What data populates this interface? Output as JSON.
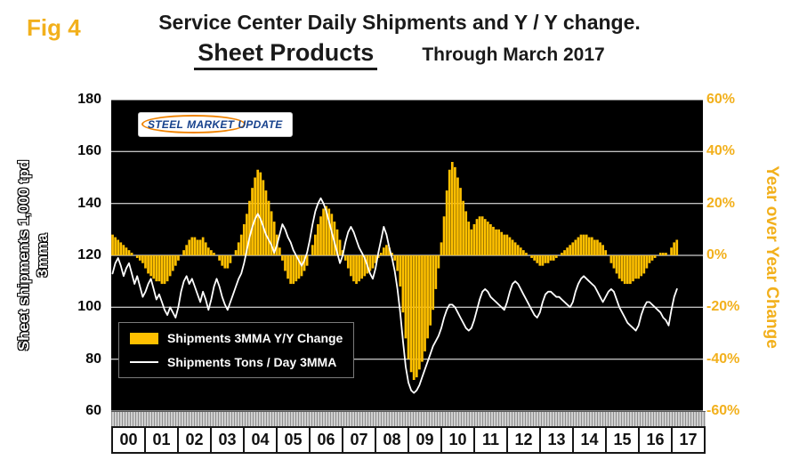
{
  "figure": {
    "fig_label": "Fig 4",
    "title": "Service Center Daily Shipments and Y / Y change.",
    "subtitle": "Sheet Products",
    "subtitle_note": "Through March 2017"
  },
  "logo": {
    "words": [
      "STEEL",
      "MARKET",
      "UPDATE"
    ]
  },
  "legend": {
    "items": [
      {
        "swatch": "bar",
        "color": "#FFC000",
        "label": "Shipments 3MMA Y/Y Change"
      },
      {
        "swatch": "line",
        "color": "#FFFFFF",
        "label": "Shipments Tons / Day 3MMA"
      }
    ]
  },
  "colors": {
    "gold_bars": "#FFC000",
    "gold_text": "#F2B01C",
    "plot_background": "#000000",
    "line_series": "#FFFFFF",
    "gridline": "#FFFFFF"
  },
  "chart_data": {
    "type": "bar",
    "subtype": "combo-bar-line",
    "x_frequency": "monthly",
    "x_start": "2000-01",
    "x_end": "2017-03",
    "x_tick_labels": [
      "00",
      "01",
      "02",
      "03",
      "04",
      "05",
      "06",
      "07",
      "08",
      "09",
      "10",
      "11",
      "12",
      "13",
      "14",
      "15",
      "16",
      "17"
    ],
    "grid": true,
    "plot_bg": "#000000",
    "legend_position": "inside-lower-left",
    "left_axis": {
      "label": "Sheet shipments 1,000 tpd 3mma",
      "label_line1": "Sheet shipments 1,000 tpd",
      "label_line2": "3mma",
      "min": 60,
      "max": 180,
      "tick_step": 20,
      "ticks": [
        180,
        160,
        140,
        120,
        100,
        80,
        60
      ]
    },
    "right_axis": {
      "label": "Year over Year Change",
      "min": -60,
      "max": 60,
      "tick_step": 20,
      "tick_values": [
        60,
        40,
        20,
        0,
        -20,
        -40,
        -60
      ],
      "tick_labels": [
        "60%",
        "40%",
        "20%",
        "0%",
        "-20%",
        "-40%",
        "-60%"
      ]
    },
    "series": [
      {
        "name": "Shipments 3MMA Y/Y Change",
        "type": "bar",
        "axis": "right",
        "unit": "percent",
        "color": "#FFC000",
        "values": [
          8,
          7,
          6,
          5,
          4,
          3,
          2,
          1,
          0,
          -1,
          -2,
          -3,
          -5,
          -7,
          -8,
          -9,
          -10,
          -10,
          -11,
          -11,
          -10,
          -8,
          -6,
          -4,
          -2,
          0,
          2,
          4,
          6,
          7,
          7,
          6,
          6,
          7,
          5,
          3,
          2,
          1,
          0,
          -2,
          -4,
          -5,
          -5,
          -3,
          0,
          2,
          5,
          8,
          12,
          16,
          21,
          26,
          30,
          33,
          32,
          29,
          25,
          21,
          17,
          13,
          8,
          3,
          -2,
          -6,
          -9,
          -11,
          -11,
          -10,
          -9,
          -8,
          -6,
          -4,
          0,
          4,
          8,
          12,
          15,
          18,
          19,
          18,
          16,
          13,
          10,
          6,
          2,
          -2,
          -5,
          -8,
          -10,
          -11,
          -10,
          -9,
          -8,
          -7,
          -6,
          -5,
          -3,
          -1,
          1,
          3,
          4,
          3,
          1,
          -2,
          -6,
          -12,
          -22,
          -32,
          -40,
          -45,
          -48,
          -47,
          -44,
          -41,
          -37,
          -32,
          -27,
          -21,
          -13,
          -5,
          5,
          15,
          25,
          33,
          36,
          34,
          30,
          26,
          21,
          17,
          13,
          10,
          12,
          14,
          15,
          15,
          14,
          13,
          12,
          11,
          10,
          10,
          9,
          8,
          8,
          7,
          6,
          5,
          4,
          3,
          2,
          1,
          0,
          -1,
          -2,
          -3,
          -4,
          -4,
          -3,
          -3,
          -2,
          -2,
          -1,
          0,
          1,
          2,
          3,
          4,
          5,
          6,
          7,
          8,
          8,
          8,
          7,
          7,
          6,
          6,
          5,
          4,
          2,
          0,
          -3,
          -5,
          -7,
          -9,
          -10,
          -11,
          -11,
          -11,
          -10,
          -9,
          -9,
          -8,
          -7,
          -5,
          -3,
          -2,
          -1,
          0,
          1,
          1,
          1,
          0,
          3,
          5,
          6
        ]
      },
      {
        "name": "Shipments Tons / Day 3MMA",
        "type": "line",
        "axis": "left",
        "unit": "1,000 tons per day",
        "color": "#FFFFFF",
        "values": [
          113,
          117,
          119,
          116,
          112,
          115,
          117,
          113,
          109,
          112,
          108,
          104,
          106,
          109,
          111,
          107,
          103,
          105,
          102,
          99,
          97,
          100,
          98,
          96,
          100,
          106,
          110,
          112,
          109,
          111,
          108,
          105,
          102,
          106,
          103,
          99,
          103,
          108,
          111,
          108,
          104,
          101,
          99,
          102,
          105,
          108,
          111,
          113,
          117,
          122,
          127,
          131,
          134,
          136,
          134,
          131,
          128,
          126,
          124,
          121,
          124,
          128,
          132,
          130,
          127,
          125,
          122,
          120,
          118,
          116,
          118,
          121,
          126,
          132,
          137,
          140,
          142,
          140,
          137,
          133,
          129,
          125,
          121,
          117,
          120,
          125,
          129,
          131,
          129,
          126,
          123,
          121,
          119,
          116,
          113,
          111,
          115,
          121,
          126,
          131,
          128,
          123,
          119,
          114,
          107,
          98,
          87,
          77,
          71,
          68,
          67,
          68,
          70,
          73,
          76,
          79,
          82,
          85,
          87,
          89,
          92,
          96,
          99,
          101,
          101,
          100,
          98,
          96,
          94,
          92,
          91,
          92,
          95,
          99,
          103,
          106,
          107,
          106,
          104,
          103,
          102,
          101,
          100,
          99,
          102,
          106,
          109,
          110,
          109,
          107,
          105,
          103,
          101,
          99,
          97,
          96,
          98,
          102,
          105,
          106,
          106,
          105,
          104,
          104,
          103,
          102,
          101,
          100,
          102,
          106,
          109,
          111,
          112,
          111,
          110,
          109,
          108,
          106,
          104,
          102,
          104,
          106,
          107,
          106,
          103,
          100,
          98,
          96,
          94,
          93,
          92,
          91,
          93,
          97,
          100,
          102,
          102,
          101,
          100,
          99,
          98,
          96,
          95,
          93,
          99,
          104,
          107
        ]
      }
    ]
  }
}
